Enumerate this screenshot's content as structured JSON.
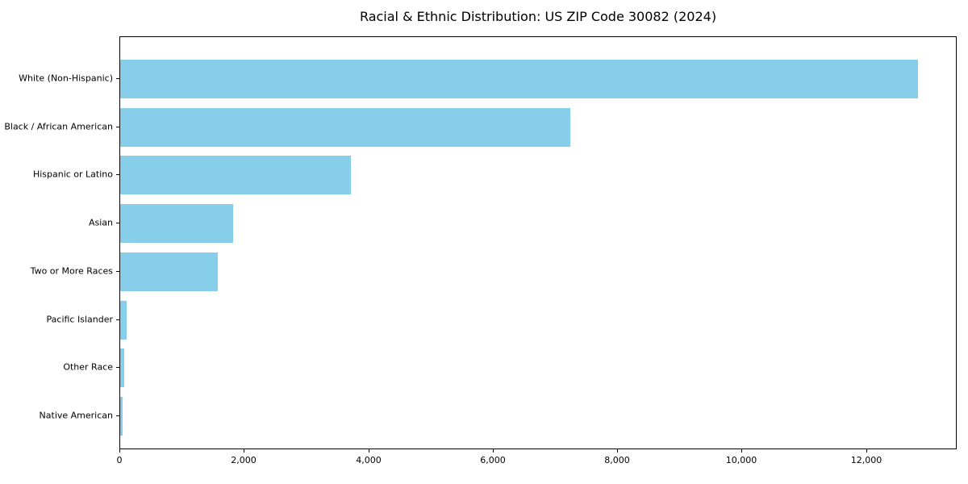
{
  "chart_data": {
    "type": "bar",
    "orientation": "horizontal",
    "title": "Racial & Ethnic Distribution: US ZIP Code 30082 (2024)",
    "categories": [
      "White (Non-Hispanic)",
      "Black / African American",
      "Hispanic or Latino",
      "Asian",
      "Two or More Races",
      "Pacific Islander",
      "Other Race",
      "Native American"
    ],
    "values": [
      12815,
      7228,
      3712,
      1820,
      1572,
      104,
      65,
      38
    ],
    "xlabel": "",
    "ylabel": "",
    "xlim": [
      0,
      13456
    ],
    "xticks": [
      0,
      2000,
      4000,
      6000,
      8000,
      10000,
      12000
    ],
    "xtick_labels": [
      "0",
      "2,000",
      "4,000",
      "6,000",
      "8,000",
      "10,000",
      "12,000"
    ],
    "grid": false,
    "legend_position": "none",
    "bar_color": "#87CEEB",
    "axis_color": "#000000",
    "background_color": "#FFFFFF"
  }
}
